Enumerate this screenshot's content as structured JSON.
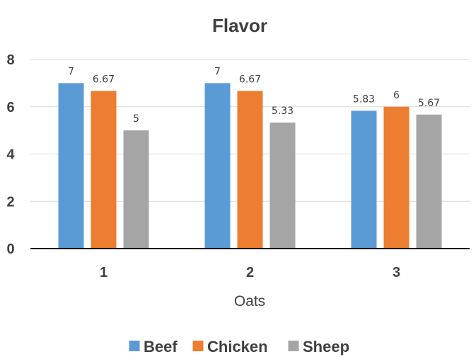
{
  "chart_data": {
    "type": "bar",
    "title": "Flavor",
    "xlabel": "Oats",
    "ylabel": "",
    "categories": [
      "1",
      "2",
      "3"
    ],
    "series": [
      {
        "name": "Beef",
        "values": [
          7,
          7,
          5.83
        ],
        "labels": [
          "7",
          "7",
          "5.83"
        ],
        "color": "#5b9bd5"
      },
      {
        "name": "Chicken",
        "values": [
          6.67,
          6.67,
          6
        ],
        "labels": [
          "6.67",
          "6.67",
          "6"
        ],
        "color": "#ed7d31"
      },
      {
        "name": "Sheep",
        "values": [
          5,
          5.33,
          5.67
        ],
        "labels": [
          "5",
          "5.33",
          "5.67"
        ],
        "color": "#a5a5a5"
      }
    ],
    "yticks": [
      "0",
      "2",
      "4",
      "6",
      "8"
    ],
    "ylim": [
      0,
      8
    ],
    "grid": true,
    "legend_position": "bottom"
  }
}
